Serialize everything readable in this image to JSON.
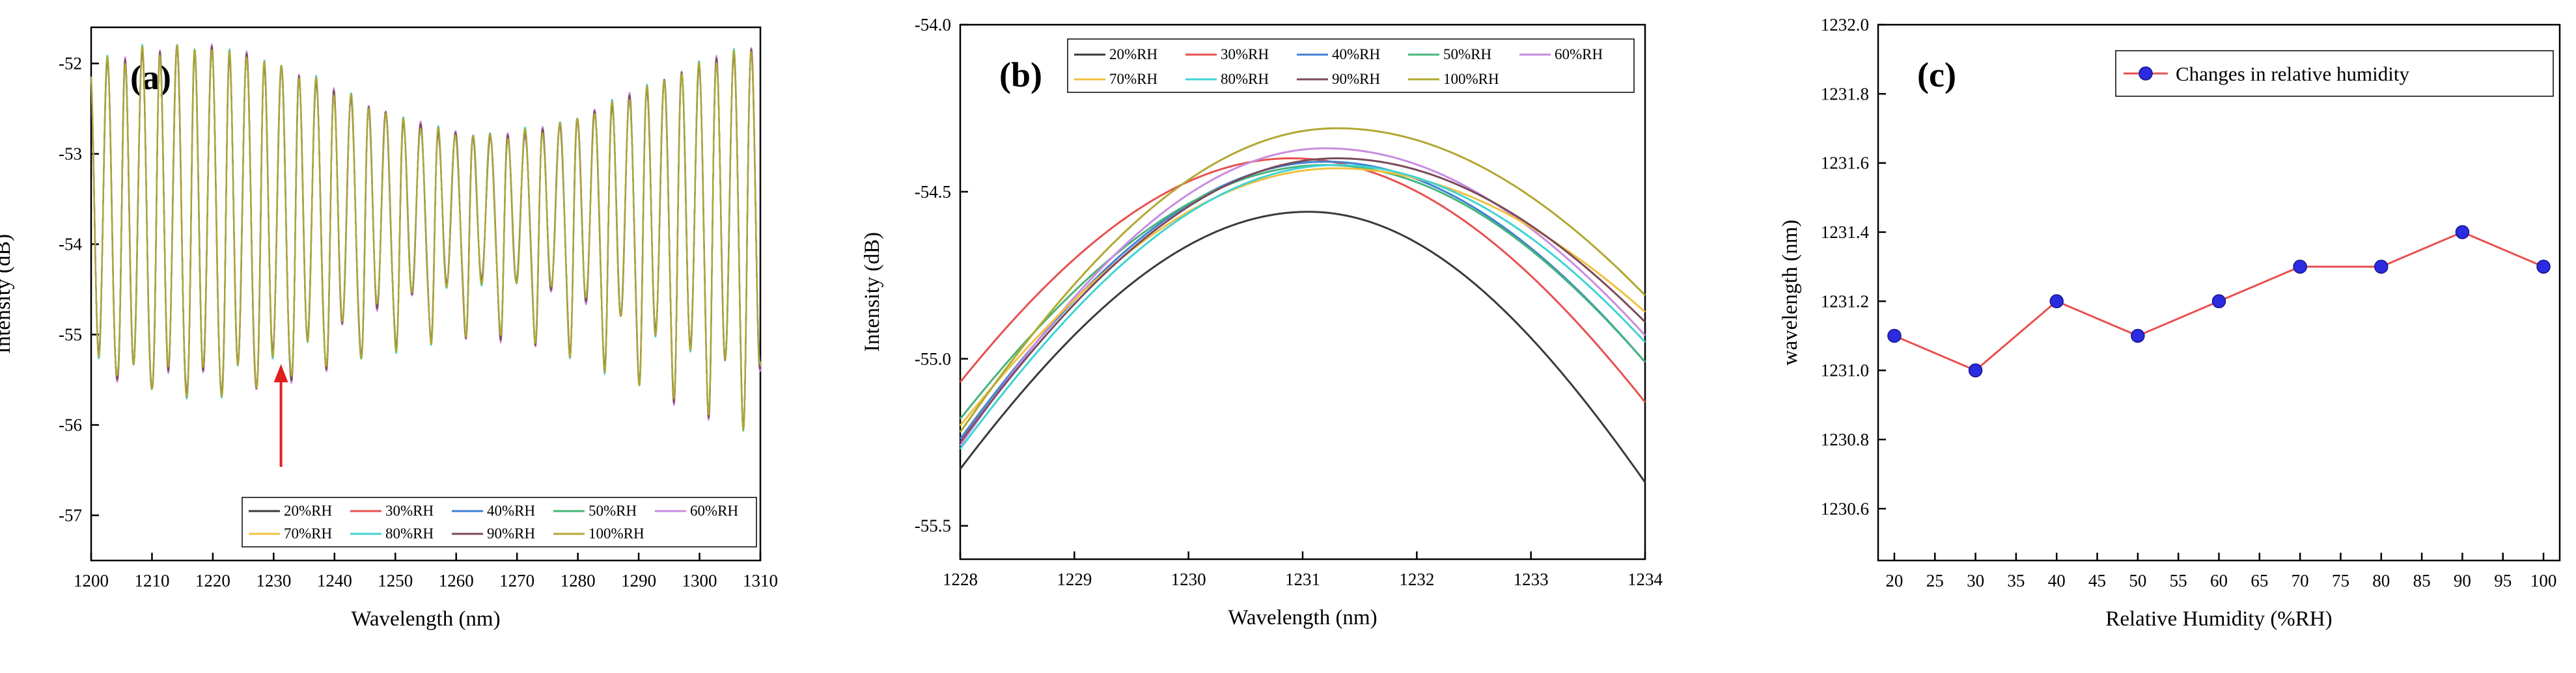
{
  "chart_data": [
    {
      "type": "line",
      "panel_label": "(a)",
      "xlabel": "Wavelength (nm)",
      "ylabel": "Intensity (dB)",
      "xlim": [
        1200,
        1310
      ],
      "ylim": [
        -57.5,
        -51.6
      ],
      "x_ticks": [
        1200,
        1210,
        1220,
        1230,
        1240,
        1250,
        1260,
        1270,
        1280,
        1290,
        1300,
        1310
      ],
      "x_tick_labels": [
        "1200",
        "1210",
        "1220",
        "1230",
        "1240",
        "1250",
        "1260",
        "1270",
        "1280",
        "1290",
        "1300",
        "1310"
      ],
      "y_ticks": [
        -52,
        -53,
        -54,
        -55,
        -56,
        -57
      ],
      "y_tick_labels": [
        "-52",
        "-53",
        "-54",
        "-55",
        "-56",
        "-57"
      ],
      "annotation": "upward red arrow near 1231 nm",
      "legend_position": "bottom-right",
      "series": [
        {
          "name": "20%RH",
          "color": "#3a3a3a"
        },
        {
          "name": "30%RH",
          "color": "#e8504f"
        },
        {
          "name": "40%RH",
          "color": "#3f7fd3"
        },
        {
          "name": "50%RH",
          "color": "#45b57a"
        },
        {
          "name": "60%RH",
          "color": "#c98be0"
        },
        {
          "name": "70%RH",
          "color": "#f0c040"
        },
        {
          "name": "80%RH",
          "color": "#3fd3d3"
        },
        {
          "name": "90%RH",
          "color": "#7a4a5a"
        },
        {
          "name": "100%RH",
          "color": "#b0a830"
        }
      ]
    },
    {
      "type": "line",
      "panel_label": "(b)",
      "xlabel": "Wavelength (nm)",
      "ylabel": "Intensity (dB)",
      "xlim": [
        1228,
        1234
      ],
      "ylim": [
        -55.6,
        -54.0
      ],
      "x_ticks": [
        1228,
        1229,
        1230,
        1231,
        1232,
        1233,
        1234
      ],
      "x_tick_labels": [
        "1228",
        "1229",
        "1230",
        "1231",
        "1232",
        "1233",
        "1234"
      ],
      "y_ticks": [
        -54.0,
        -54.5,
        -55.0,
        -55.5
      ],
      "y_tick_labels": [
        "-54.0",
        "-54.5",
        "-55.0",
        "-55.5"
      ],
      "legend_position": "top-left",
      "series": [
        {
          "name": "20%RH",
          "color": "#3a3a3a",
          "x": [
            1228,
            1231.05,
            1234
          ],
          "y": [
            -55.33,
            -54.56,
            -55.37
          ]
        },
        {
          "name": "30%RH",
          "color": "#e8504f",
          "x": [
            1228,
            1230.9,
            1234
          ],
          "y": [
            -55.07,
            -54.4,
            -55.13
          ]
        },
        {
          "name": "40%RH",
          "color": "#3f7fd3",
          "x": [
            1228,
            1231.2,
            1234
          ],
          "y": [
            -55.24,
            -54.41,
            -55.01
          ]
        },
        {
          "name": "50%RH",
          "color": "#45b57a",
          "x": [
            1228,
            1231.2,
            1234
          ],
          "y": [
            -55.18,
            -54.42,
            -55.01
          ]
        },
        {
          "name": "60%RH",
          "color": "#c98be0",
          "x": [
            1228,
            1231.2,
            1234
          ],
          "y": [
            -55.26,
            -54.37,
            -54.93
          ]
        },
        {
          "name": "70%RH",
          "color": "#f0c040",
          "x": [
            1228,
            1231.3,
            1234
          ],
          "y": [
            -55.2,
            -54.43,
            -54.86
          ]
        },
        {
          "name": "80%RH",
          "color": "#3fd3d3",
          "x": [
            1228,
            1231.3,
            1234
          ],
          "y": [
            -55.27,
            -54.42,
            -54.95
          ]
        },
        {
          "name": "90%RH",
          "color": "#7a4a5a",
          "x": [
            1228,
            1231.3,
            1234
          ],
          "y": [
            -55.25,
            -54.4,
            -54.89
          ]
        },
        {
          "name": "100%RH",
          "color": "#b0a830",
          "x": [
            1228,
            1231.3,
            1234
          ],
          "y": [
            -55.22,
            -54.31,
            -54.81
          ]
        }
      ]
    },
    {
      "type": "line",
      "panel_label": "(c)",
      "xlabel": "Relative Humidity (%RH)",
      "ylabel": "wavelength (nm)",
      "xlim": [
        18,
        102
      ],
      "ylim": [
        1230.45,
        1232.0
      ],
      "x_ticks": [
        20,
        25,
        30,
        35,
        40,
        45,
        50,
        55,
        60,
        65,
        70,
        75,
        80,
        85,
        90,
        95,
        100
      ],
      "x_tick_labels": [
        "20",
        "25",
        "30",
        "35",
        "40",
        "45",
        "50",
        "55",
        "60",
        "65",
        "70",
        "75",
        "80",
        "85",
        "90",
        "95",
        "100"
      ],
      "y_ticks": [
        1230.6,
        1230.8,
        1231.0,
        1231.2,
        1231.4,
        1231.6,
        1231.8,
        1232.0
      ],
      "y_tick_labels": [
        "1230.6",
        "1230.8",
        "1231.0",
        "1231.2",
        "1231.4",
        "1231.6",
        "1231.8",
        "1232.0"
      ],
      "legend_position": "top-right",
      "series": [
        {
          "name": "Changes in relative humidity",
          "line_color": "#e8504f",
          "marker_color": "#2b2be0",
          "x": [
            20,
            30,
            40,
            50,
            60,
            70,
            80,
            90,
            100
          ],
          "y": [
            1231.1,
            1231.0,
            1231.2,
            1231.1,
            1231.2,
            1231.3,
            1231.3,
            1231.4,
            1231.3
          ]
        }
      ]
    }
  ]
}
